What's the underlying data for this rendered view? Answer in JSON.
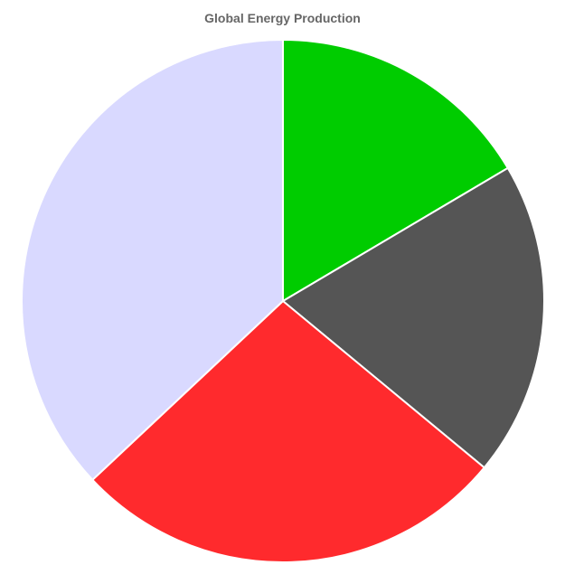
{
  "chart_data": {
    "type": "pie",
    "title": "Global Energy Production",
    "start_angle_deg": 0,
    "direction": "clockwise",
    "slices": [
      {
        "value": 16.5,
        "color": "#00cc00"
      },
      {
        "value": 19.5,
        "color": "#555555"
      },
      {
        "value": 27.0,
        "color": "#ff2a2d"
      },
      {
        "value": 37.0,
        "color": "#d9d9ff"
      }
    ]
  }
}
